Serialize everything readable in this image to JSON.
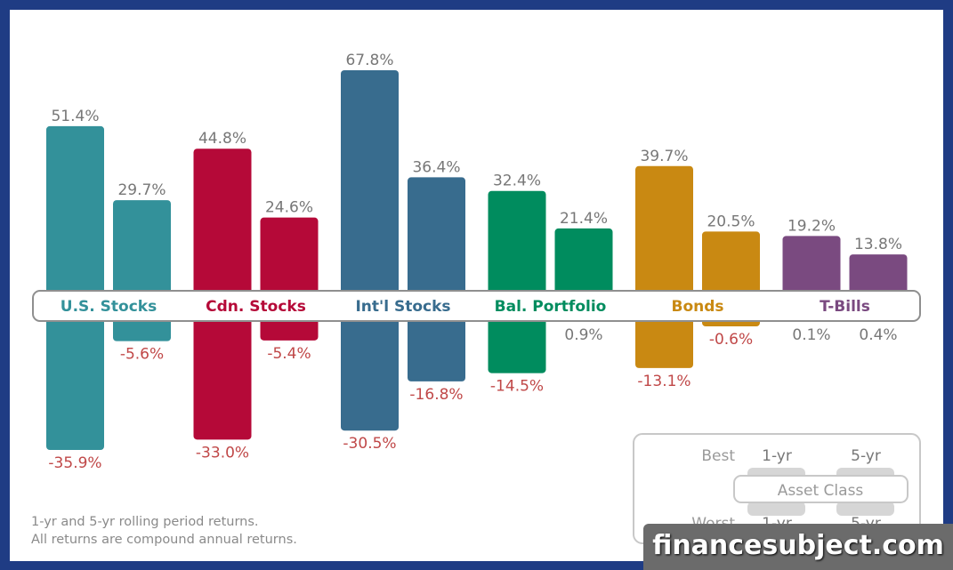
{
  "chart_data": {
    "type": "bar",
    "categories": [
      "U.S. Stocks",
      "Cdn. Stocks",
      "Int'l Stocks",
      "Bal. Portfolio",
      "Bonds",
      "T-Bills"
    ],
    "colors": [
      "#33919a",
      "#b50938",
      "#386c8e",
      "#008c5e",
      "#c98912",
      "#7a4a80"
    ],
    "series": [
      {
        "name": "1-yr best",
        "values": [
          51.4,
          44.8,
          67.8,
          32.4,
          39.7,
          19.2
        ]
      },
      {
        "name": "1-yr worst",
        "values": [
          -35.9,
          -33.0,
          -30.5,
          -14.5,
          -13.1,
          0.1
        ]
      },
      {
        "name": "5-yr best",
        "values": [
          29.7,
          24.6,
          36.4,
          21.4,
          20.5,
          13.8
        ]
      },
      {
        "name": "5-yr worst",
        "values": [
          -5.6,
          -5.4,
          -16.8,
          0.9,
          -0.6,
          0.4
        ]
      }
    ],
    "labels": {
      "best_1yr": [
        "51.4%",
        "44.8%",
        "67.8%",
        "32.4%",
        "39.7%",
        "19.2%"
      ],
      "worst_1yr": [
        "-35.9%",
        "-33.0%",
        "-30.5%",
        "-14.5%",
        "-13.1%",
        "0.1%"
      ],
      "best_5yr": [
        "29.7%",
        "24.6%",
        "36.4%",
        "21.4%",
        "20.5%",
        "13.8%"
      ],
      "worst_5yr": [
        "-5.6%",
        "-5.4%",
        "-16.8%",
        "0.9%",
        "-0.6%",
        "0.4%"
      ]
    },
    "legend": {
      "best": "Best",
      "worst": "Worst",
      "one_yr": "1-yr",
      "five_yr": "5-yr",
      "center": "Asset Class"
    }
  },
  "footnote": {
    "line1": "1-yr and 5-yr rolling period returns.",
    "line2": "All returns are compound annual returns."
  },
  "watermark": "financesubject.com"
}
